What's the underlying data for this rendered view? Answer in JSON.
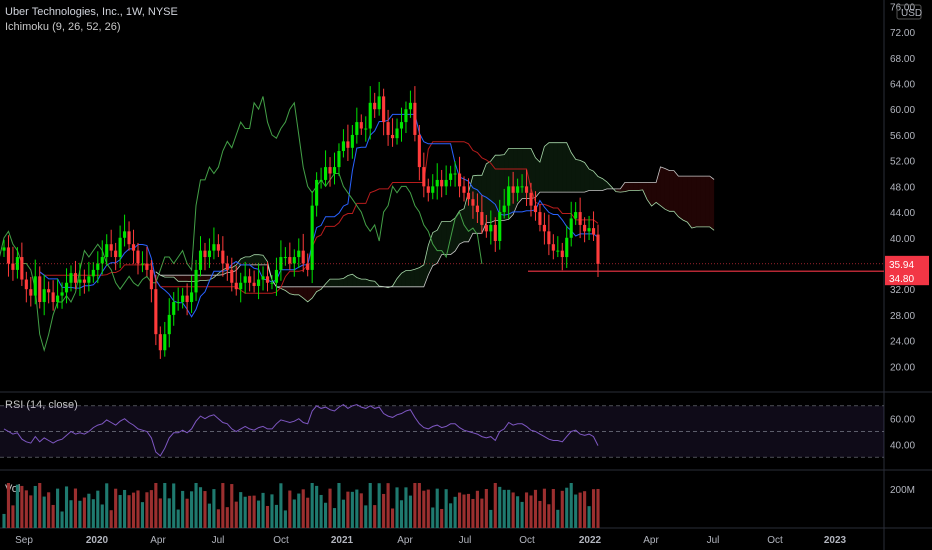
{
  "header": {
    "symbol": "Uber Technologies, Inc., 1W, NYSE",
    "ichimoku": "Ichimoku (9, 26, 52, 26)",
    "rsi": "RSI (14, close)",
    "vol": "Vol",
    "currency": "USD"
  },
  "colors": {
    "up": "#26a69a",
    "down": "#ef5350",
    "upBright": "#00e600",
    "downBright": "#ff3b3b",
    "conversion": "#2962ff",
    "base": "#b71c1c",
    "lagging": "#43a047",
    "cloudEdge": "#a5d6a7",
    "rsiLine": "#7e57c2",
    "priceLine": "#f23645"
  },
  "chart_data": {
    "type": "candlestick",
    "price_axis": {
      "ticks": [
        "76.00",
        "72.00",
        "68.00",
        "64.00",
        "60.00",
        "56.00",
        "52.00",
        "48.00",
        "44.00",
        "40.00",
        "36.00",
        "32.00",
        "28.00",
        "24.00",
        "20.00"
      ],
      "range": [
        16,
        77
      ]
    },
    "time_axis": {
      "labels": [
        "Sep",
        "2020",
        "Apr",
        "Jul",
        "Oct",
        "2021",
        "Apr",
        "Jul",
        "Oct",
        "2022",
        "Apr",
        "Jul",
        "Oct",
        "2023"
      ]
    },
    "price_labels": {
      "last": "35.94",
      "level": "34.80"
    },
    "rsi_axis": {
      "ticks": [
        "60.00",
        "40.00"
      ],
      "levels": [
        70,
        50,
        30
      ]
    },
    "volume_axis": {
      "ticks": [
        "200M"
      ]
    },
    "closes": [
      38.5,
      36,
      35,
      37,
      33.5,
      32,
      31,
      34,
      30,
      32,
      31.5,
      30,
      31,
      31.5,
      33,
      34.5,
      33,
      33.5,
      33,
      34,
      35,
      36,
      37,
      39,
      38,
      37,
      40,
      41,
      39,
      38,
      36,
      36,
      35,
      32,
      25,
      22.5,
      25,
      28,
      30,
      30,
      31,
      30,
      31.5,
      35,
      38,
      37,
      38,
      39,
      38,
      36,
      35,
      33,
      32,
      33,
      34,
      33,
      32.5,
      33.5,
      34,
      33,
      33,
      35,
      37,
      37,
      36,
      37,
      38,
      36,
      35,
      45,
      49,
      49,
      51,
      50,
      51,
      53.5,
      55,
      54,
      56,
      58,
      57,
      57,
      61,
      60,
      62,
      58,
      56,
      55.5,
      57,
      58,
      60,
      61,
      56,
      51,
      48,
      47,
      48,
      49,
      48,
      49,
      50,
      50,
      48,
      47,
      46,
      45,
      44,
      42,
      41,
      42,
      39.5,
      44,
      45,
      48,
      47,
      48,
      48,
      47,
      45,
      44,
      42,
      41,
      39,
      38,
      38,
      37,
      40,
      43,
      44,
      42,
      41,
      41.5,
      40.5,
      35.94
    ],
    "rsi": [
      52,
      50,
      48,
      49,
      44,
      42,
      41,
      46,
      42,
      45,
      43,
      41,
      43,
      44,
      47,
      50,
      48,
      49,
      48,
      50,
      53,
      55,
      56,
      59,
      57,
      55,
      58,
      60,
      57,
      55,
      52,
      51,
      50,
      45,
      34,
      31,
      37,
      45,
      49,
      49,
      51,
      49,
      52,
      58,
      62,
      60,
      62,
      63,
      60,
      57,
      56,
      52,
      50,
      52,
      54,
      52,
      51,
      53,
      54,
      52,
      52,
      56,
      59,
      58,
      57,
      58,
      60,
      57,
      56,
      66,
      70,
      68,
      69,
      67,
      66,
      69,
      71,
      68,
      70,
      71,
      69,
      68,
      70,
      68,
      69,
      64,
      62,
      61,
      63,
      64,
      66,
      67,
      61,
      56,
      53,
      52,
      54,
      55,
      53,
      54,
      56,
      56,
      53,
      51,
      50,
      49,
      48,
      46,
      45,
      46,
      43,
      50,
      52,
      57,
      55,
      56,
      56,
      54,
      51,
      50,
      48,
      46,
      44,
      43,
      43,
      42,
      46,
      50,
      51,
      48,
      47,
      48,
      46,
      39
    ]
  }
}
